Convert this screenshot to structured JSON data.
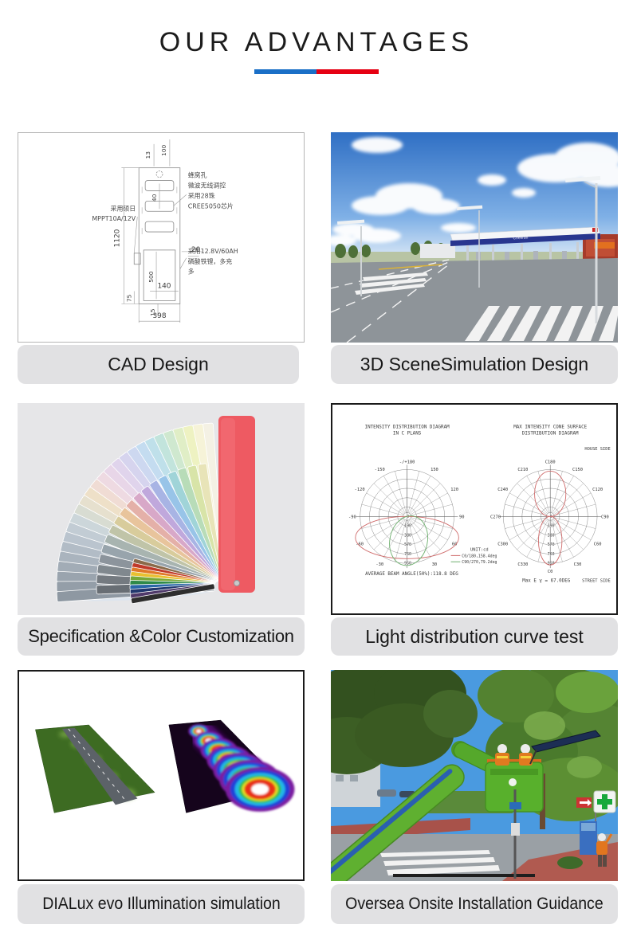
{
  "header": {
    "title": "OUR ADVANTAGES",
    "divider": {
      "blue": "#1a6fc7",
      "red": "#e60012"
    }
  },
  "cards": [
    {
      "caption": "CAD Design"
    },
    {
      "caption": "3D SceneSimulation Design"
    },
    {
      "caption": "Specification &Color Customization"
    },
    {
      "caption": "Light distribution curve test"
    },
    {
      "caption": "DIALux evo Illumination simulation"
    },
    {
      "caption": "Oversea Onsite Installation Guidance"
    }
  ],
  "cad": {
    "dims": {
      "w13": "13",
      "w100": "100",
      "w40": "40",
      "h1120": "1120",
      "h500": "500",
      "w20": "20",
      "w140": "140",
      "h75": "75",
      "h15": "15",
      "w398": "398"
    },
    "notes": {
      "top_right": [
        "蜂窝孔",
        "微波无线调控",
        "采用28珠",
        "CREE5050芯片"
      ],
      "left": [
        "采用硕日",
        "MPPT10A/12V"
      ],
      "bottom_right": [
        "采用12.8V/60AH",
        "磷酸铁锂，多充",
        "多"
      ]
    }
  },
  "scene": {
    "brand": "Chevron"
  },
  "fan": {
    "cover": "#ee5a62",
    "blades": [
      "#f4f1e4",
      "#f6f3d8",
      "#eef2c2",
      "#e0eec6",
      "#cfe8cf",
      "#c2e4dc",
      "#bfe0ea",
      "#c4dcf0",
      "#cdd8f0",
      "#d6d4ee",
      "#e0d4ec",
      "#e8d6e8",
      "#eedae2",
      "#f0dcd4",
      "#eee0c8",
      "#e6e0ce",
      "#d8dcd2",
      "#ccd6da",
      "#c2ccd4",
      "#bac4ce",
      "#b2bcc6",
      "#aab4be",
      "#a2acb6",
      "#9aa4ae",
      "#949ea8",
      "#8e98a2"
    ],
    "mid": [
      "#e8e4b8",
      "#d8e4a8",
      "#b8dcb8",
      "#a0d4d8",
      "#98c4e8",
      "#a8b4e4",
      "#c0a8dc",
      "#d8a8c8",
      "#e4b0a8",
      "#e8c49c",
      "#d8cc9c",
      "#c0c4a8",
      "#a8b4b0",
      "#98a4ac",
      "#8c949c",
      "#80888e",
      "#747a80",
      "#686e74"
    ],
    "accents": [
      "#8a6a4a",
      "#c03a2a",
      "#e07828",
      "#e8c030",
      "#78a838",
      "#2f8a4a",
      "#2a66a8",
      "#22386e",
      "#503a6a",
      "#2e2e2e"
    ]
  },
  "chart_data": [
    {
      "type": "polar-line",
      "title1": "INTENSITY DISTRIBUTION DIAGRAM",
      "title2": "IN C PLANS",
      "unit": "UNIT:cd",
      "angle_labels": [
        {
          "deg": 0,
          "label": "-/+180"
        },
        {
          "deg": 30,
          "label": "150"
        },
        {
          "deg": 60,
          "label": "120"
        },
        {
          "deg": 90,
          "label": "90"
        },
        {
          "deg": 120,
          "label": "60"
        },
        {
          "deg": 150,
          "label": "30"
        },
        {
          "deg": 210,
          "label": "-30"
        },
        {
          "deg": 240,
          "label": "-60"
        },
        {
          "deg": 270,
          "label": "-90"
        },
        {
          "deg": 300,
          "label": "-120"
        },
        {
          "deg": 330,
          "label": "-150"
        }
      ],
      "radial_ticks": [
        "0",
        "190",
        "380",
        "570",
        "760",
        "950"
      ],
      "series": [
        {
          "label": "C0/180,158.4deg",
          "color": "#cf6a6a",
          "beam_angle_deg": 158.4
        },
        {
          "label": "C90/270,79.2deg",
          "color": "#6aae6a",
          "beam_angle_deg": 79.2
        }
      ],
      "footer": "AVERAGE BEAM ANGLE(50%):118.8 DEG"
    },
    {
      "type": "polar-line",
      "title1": "MAX INTENSITY CONE SURFACE",
      "title2": "DISTRIBUTION DIAGRAM",
      "house_side": "HOUSE SIDE",
      "street_side": "STREET SIDE",
      "angle_labels": [
        {
          "deg": 0,
          "label": "C180"
        },
        {
          "deg": 30,
          "label": "C150"
        },
        {
          "deg": 60,
          "label": "C120"
        },
        {
          "deg": 90,
          "label": "C90"
        },
        {
          "deg": 120,
          "label": "C60"
        },
        {
          "deg": 150,
          "label": "C30"
        },
        {
          "deg": 180,
          "label": "C0"
        },
        {
          "deg": 210,
          "label": "C330"
        },
        {
          "deg": 240,
          "label": "C300"
        },
        {
          "deg": 270,
          "label": "C270"
        },
        {
          "deg": 300,
          "label": "C240"
        },
        {
          "deg": 330,
          "label": "C210"
        }
      ],
      "radial_ticks": [
        "0",
        "190",
        "380",
        "570",
        "760",
        "950"
      ],
      "series": [
        {
          "label": "max intensity cone",
          "color": "#cf6a6a"
        }
      ],
      "footer": "Max E γ = 67.0DEG"
    }
  ]
}
